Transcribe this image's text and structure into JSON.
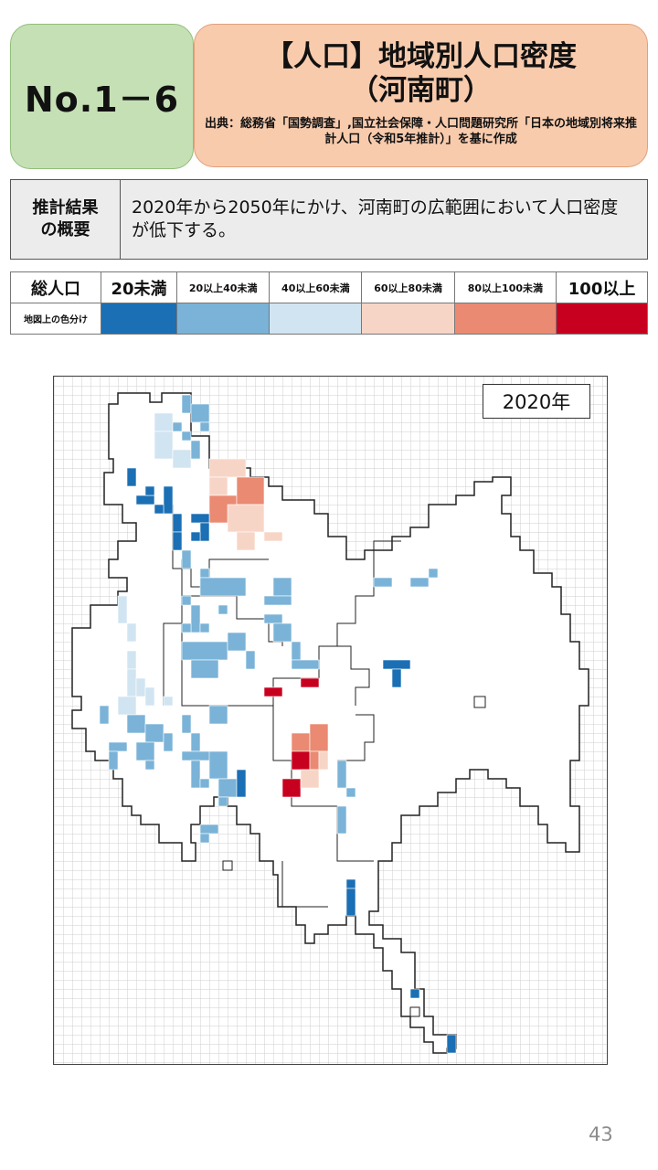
{
  "header": {
    "number": "No.1－6",
    "title_main": "【人口】地域別人口密度",
    "title_sub": "（河南町）",
    "source": "出典：総務省「国勢調査」,国立社会保障・人口問題研究所「日本の地域別将来推計人口（令和5年推計）」を基に作成"
  },
  "summary": {
    "label": "推計結果\nの概要",
    "text": "2020年から2050年にかけ、河南町の広範囲において人口密度が低下する。"
  },
  "legend": {
    "head_label": "総人口",
    "row_label": "地図上の色分け",
    "classes": [
      {
        "label": "20未満",
        "color": "#1b6fb4",
        "size": "big"
      },
      {
        "label": "20以上40未満",
        "color": "#7ab3d7",
        "size": "small"
      },
      {
        "label": "40以上60未満",
        "color": "#d1e4f1",
        "size": "small"
      },
      {
        "label": "60以上80未満",
        "color": "#f7d5c6",
        "size": "small"
      },
      {
        "label": "80以上100未満",
        "color": "#ea8a72",
        "size": "small"
      },
      {
        "label": "100以上",
        "color": "#c8001f",
        "size": "big"
      }
    ]
  },
  "map": {
    "year_label": "2020年"
  },
  "page_number": "43"
}
